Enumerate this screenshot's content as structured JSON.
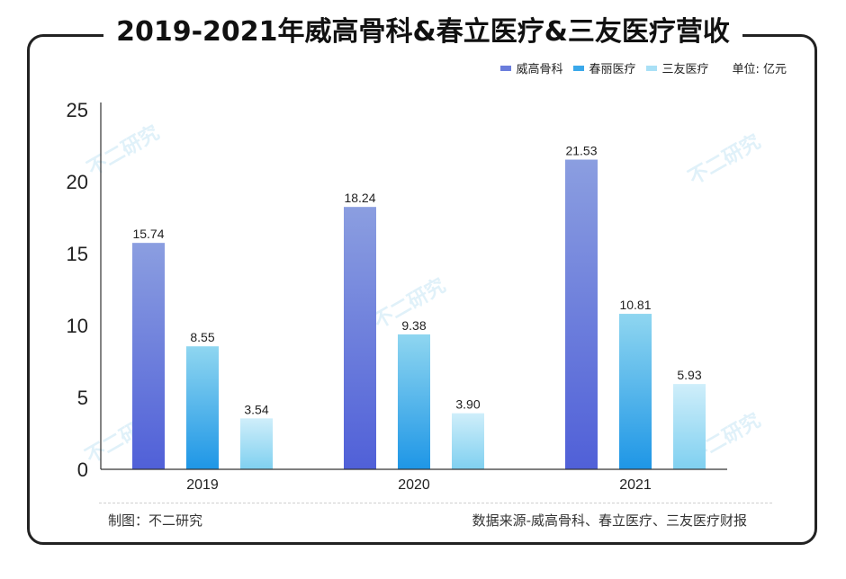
{
  "chart_data": {
    "type": "bar",
    "title": "2019-2021年威高骨科&春立医疗&三友医疗营收",
    "unit": "单位: 亿元",
    "categories": [
      "2019",
      "2020",
      "2021"
    ],
    "series": [
      {
        "name": "威高骨科",
        "values": [
          15.74,
          18.24,
          21.53
        ],
        "color_top": "#8b9ee0",
        "color_bottom": "#5060d8"
      },
      {
        "name": "春丽医疗",
        "values": [
          8.55,
          9.38,
          10.81
        ],
        "color_top": "#8fd6f0",
        "color_bottom": "#1e96e6"
      },
      {
        "name": "三友医疗",
        "values": [
          3.54,
          3.9,
          5.93
        ],
        "color_top": "#cfeefa",
        "color_bottom": "#7fd0f0"
      }
    ],
    "value_labels": {
      "s0": [
        "15.74",
        "18.24",
        "21.53"
      ],
      "s1": [
        "8.55",
        "9.38",
        "10.81"
      ],
      "s2": [
        "3.54",
        "3.90",
        "5.93"
      ]
    },
    "yticks": [
      "0",
      "5",
      "10",
      "15",
      "20",
      "25"
    ],
    "ylim": [
      0,
      25
    ],
    "grid": false,
    "legend_position": "top-right"
  },
  "footer": {
    "left": "制图：不二研究",
    "right": "数据来源-威高骨科、春立医疗、三友医疗财报"
  },
  "watermark": "不二研究"
}
